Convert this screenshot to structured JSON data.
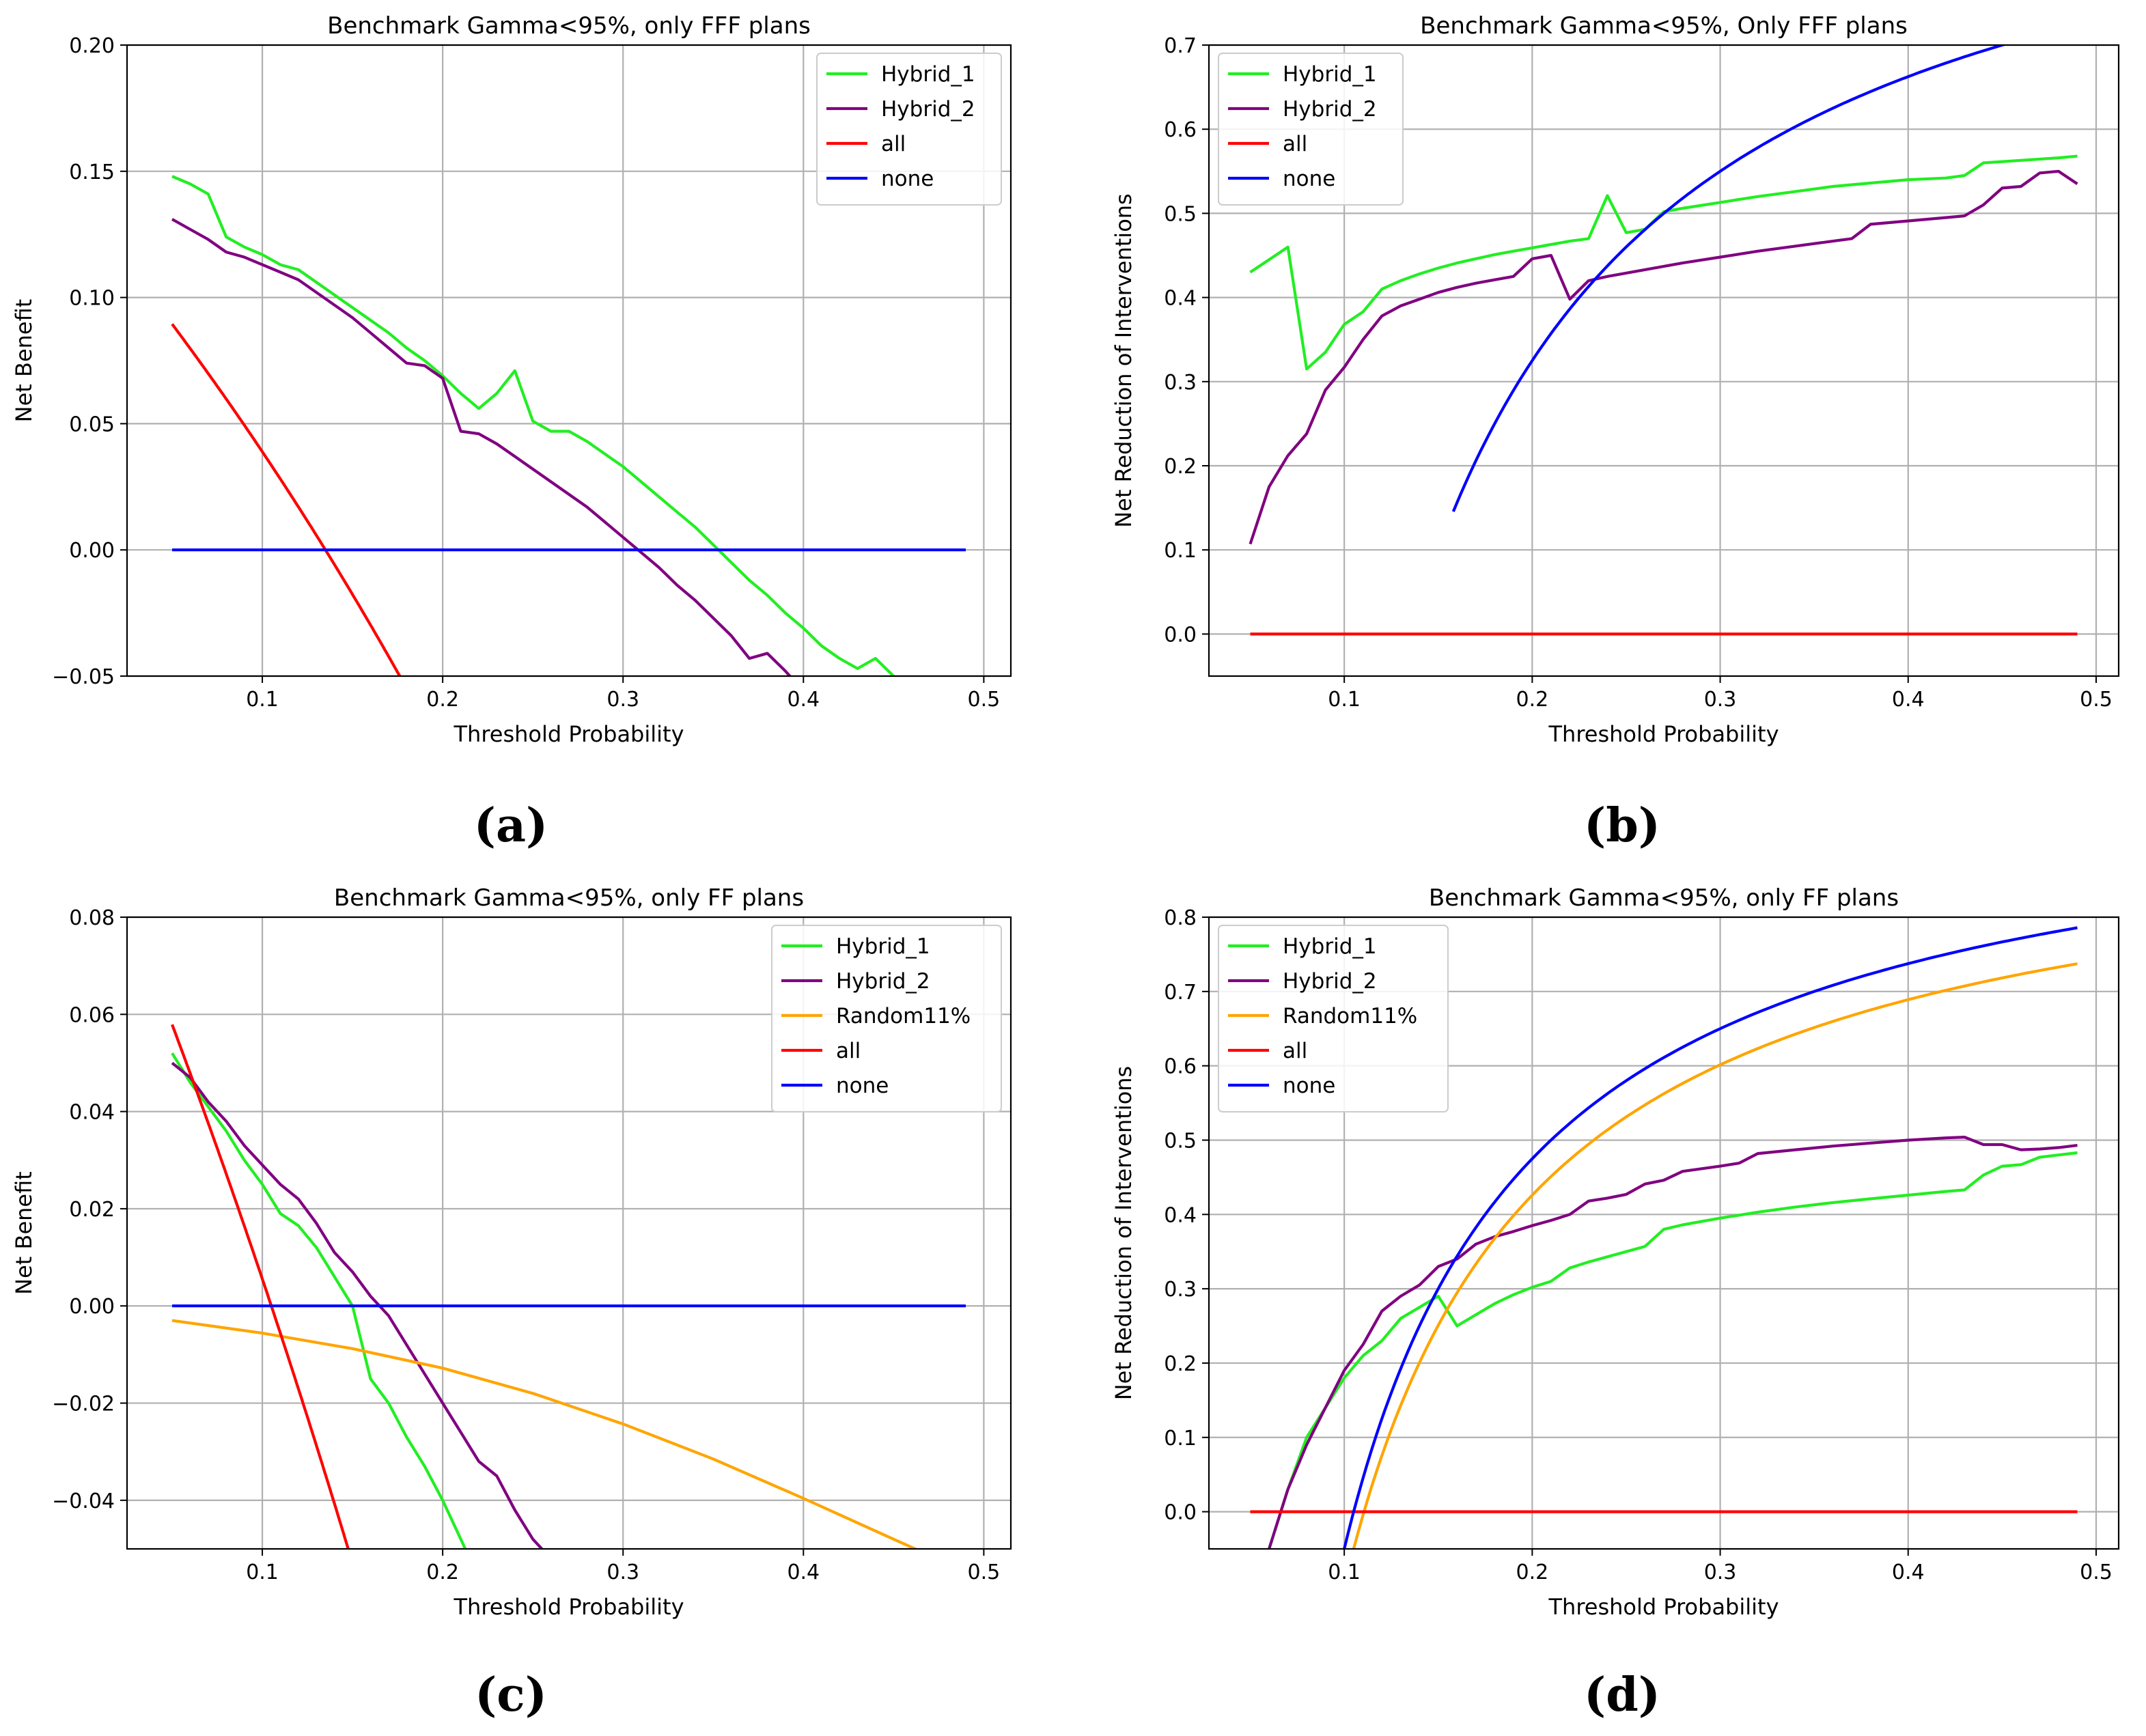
{
  "chart_data": [
    {
      "id": "a",
      "type": "line",
      "panel_label": "(a)",
      "title": "Benchmark Gamma<95%, only FFF plans",
      "xlabel": "Threshold Probability",
      "ylabel": "Net Benefit",
      "xlim": [
        0.025,
        0.515
      ],
      "ylim": [
        -0.05,
        0.2
      ],
      "xticks": [
        0.1,
        0.2,
        0.3,
        0.4,
        0.5
      ],
      "xtick_labels": [
        "0.1",
        "0.2",
        "0.3",
        "0.4",
        "0.5"
      ],
      "yticks": [
        -0.05,
        0.0,
        0.05,
        0.1,
        0.15,
        0.2
      ],
      "ytick_labels": [
        "−0.05",
        "0.00",
        "0.05",
        "0.10",
        "0.15",
        "0.20"
      ],
      "grid": true,
      "legend_position": "top-right",
      "series": [
        {
          "name": "Hybrid_1",
          "color": "#22ee22",
          "x": [
            0.05,
            0.06,
            0.07,
            0.08,
            0.09,
            0.1,
            0.11,
            0.12,
            0.13,
            0.14,
            0.15,
            0.16,
            0.17,
            0.18,
            0.19,
            0.2,
            0.21,
            0.22,
            0.23,
            0.24,
            0.25,
            0.26,
            0.27,
            0.28,
            0.29,
            0.3,
            0.31,
            0.32,
            0.33,
            0.34,
            0.35,
            0.36,
            0.37,
            0.38,
            0.39,
            0.4,
            0.41,
            0.42,
            0.43,
            0.44,
            0.45,
            0.46
          ],
          "y": [
            0.148,
            0.145,
            0.141,
            0.124,
            0.12,
            0.117,
            0.113,
            0.111,
            0.106,
            0.101,
            0.096,
            0.091,
            0.086,
            0.08,
            0.075,
            0.069,
            0.062,
            0.056,
            0.062,
            0.071,
            0.051,
            0.047,
            0.047,
            0.043,
            0.038,
            0.033,
            0.027,
            0.021,
            0.015,
            0.009,
            0.002,
            -0.005,
            -0.012,
            -0.018,
            -0.025,
            -0.031,
            -0.038,
            -0.043,
            -0.047,
            -0.043,
            -0.05,
            -0.057
          ]
        },
        {
          "name": "Hybrid_2",
          "color": "#800080",
          "x": [
            0.05,
            0.06,
            0.07,
            0.08,
            0.09,
            0.1,
            0.11,
            0.12,
            0.13,
            0.14,
            0.15,
            0.16,
            0.17,
            0.18,
            0.19,
            0.2,
            0.21,
            0.22,
            0.23,
            0.24,
            0.25,
            0.26,
            0.27,
            0.28,
            0.29,
            0.3,
            0.31,
            0.32,
            0.33,
            0.34,
            0.35,
            0.36,
            0.37,
            0.38,
            0.39,
            0.4
          ],
          "y": [
            0.131,
            0.127,
            0.123,
            0.118,
            0.116,
            0.113,
            0.11,
            0.107,
            0.102,
            0.097,
            0.092,
            0.086,
            0.08,
            0.074,
            0.073,
            0.068,
            0.047,
            0.046,
            0.042,
            0.037,
            0.032,
            0.027,
            0.022,
            0.017,
            0.011,
            0.005,
            -0.001,
            -0.007,
            -0.014,
            -0.02,
            -0.027,
            -0.034,
            -0.043,
            -0.041,
            -0.048,
            -0.056
          ]
        },
        {
          "name": "all",
          "color": "#ff0000",
          "fn": "1 - (1-0.135)/(1-x)",
          "xrange": [
            0.05,
            0.21
          ]
        },
        {
          "name": "none",
          "color": "#0000ff",
          "x": [
            0.05,
            0.49
          ],
          "y": [
            0.0,
            0.0
          ]
        }
      ]
    },
    {
      "id": "b",
      "type": "line",
      "panel_label": "(b)",
      "title": "Benchmark Gamma<95%, Only FFF plans",
      "xlabel": "Threshold Probability",
      "ylabel": "Net Reduction of Interventions",
      "xlim": [
        0.028,
        0.512
      ],
      "ylim": [
        -0.05,
        0.7
      ],
      "xticks": [
        0.1,
        0.2,
        0.3,
        0.4,
        0.5
      ],
      "xtick_labels": [
        "0.1",
        "0.2",
        "0.3",
        "0.4",
        "0.5"
      ],
      "yticks": [
        0.0,
        0.1,
        0.2,
        0.3,
        0.4,
        0.5,
        0.6,
        0.7
      ],
      "ytick_labels": [
        "0.0",
        "0.1",
        "0.2",
        "0.3",
        "0.4",
        "0.5",
        "0.6",
        "0.7"
      ],
      "grid": true,
      "legend_position": "top-left",
      "series": [
        {
          "name": "Hybrid_1",
          "color": "#22ee22",
          "x": [
            0.05,
            0.06,
            0.07,
            0.08,
            0.09,
            0.1,
            0.11,
            0.12,
            0.13,
            0.14,
            0.15,
            0.16,
            0.17,
            0.18,
            0.19,
            0.2,
            0.21,
            0.22,
            0.23,
            0.24,
            0.25,
            0.26,
            0.27,
            0.28,
            0.3,
            0.32,
            0.34,
            0.36,
            0.38,
            0.4,
            0.42,
            0.43,
            0.44,
            0.46,
            0.48,
            0.49
          ],
          "y": [
            0.43,
            0.445,
            0.46,
            0.315,
            0.335,
            0.368,
            0.383,
            0.41,
            0.42,
            0.428,
            0.435,
            0.441,
            0.446,
            0.451,
            0.455,
            0.459,
            0.463,
            0.467,
            0.47,
            0.521,
            0.477,
            0.481,
            0.502,
            0.506,
            0.513,
            0.52,
            0.526,
            0.532,
            0.536,
            0.54,
            0.542,
            0.545,
            0.56,
            0.563,
            0.566,
            0.568
          ]
        },
        {
          "name": "Hybrid_2",
          "color": "#800080",
          "x": [
            0.05,
            0.06,
            0.07,
            0.08,
            0.09,
            0.1,
            0.11,
            0.12,
            0.13,
            0.14,
            0.15,
            0.16,
            0.17,
            0.18,
            0.19,
            0.2,
            0.21,
            0.22,
            0.23,
            0.24,
            0.26,
            0.28,
            0.3,
            0.32,
            0.34,
            0.36,
            0.37,
            0.38,
            0.4,
            0.42,
            0.43,
            0.44,
            0.45,
            0.46,
            0.47,
            0.48,
            0.49
          ],
          "y": [
            0.107,
            0.175,
            0.212,
            0.238,
            0.29,
            0.317,
            0.35,
            0.378,
            0.39,
            0.398,
            0.406,
            0.412,
            0.417,
            0.421,
            0.425,
            0.446,
            0.45,
            0.398,
            0.42,
            0.425,
            0.433,
            0.441,
            0.448,
            0.455,
            0.461,
            0.467,
            0.47,
            0.487,
            0.491,
            0.495,
            0.497,
            0.51,
            0.53,
            0.532,
            0.548,
            0.55,
            0.535
          ]
        },
        {
          "name": "all",
          "color": "#ff0000",
          "x": [
            0.05,
            0.49
          ],
          "y": [
            0.0,
            0.0
          ]
        },
        {
          "name": "none",
          "color": "#0000ff",
          "fn": "1 - 0.135/x",
          "xrange": [
            0.158,
            0.49
          ]
        }
      ]
    },
    {
      "id": "c",
      "type": "line",
      "panel_label": "(c)",
      "title": "Benchmark Gamma<95%, only FF plans",
      "xlabel": "Threshold Probability",
      "ylabel": "Net Benefit",
      "xlim": [
        0.025,
        0.515
      ],
      "ylim": [
        -0.05,
        0.08
      ],
      "xticks": [
        0.1,
        0.2,
        0.3,
        0.4,
        0.5
      ],
      "xtick_labels": [
        "0.1",
        "0.2",
        "0.3",
        "0.4",
        "0.5"
      ],
      "yticks": [
        -0.04,
        -0.02,
        0.0,
        0.02,
        0.04,
        0.06,
        0.08
      ],
      "ytick_labels": [
        "−0.04",
        "−0.02",
        "0.00",
        "0.02",
        "0.04",
        "0.06",
        "0.08"
      ],
      "grid": true,
      "legend_position": "top-right",
      "series": [
        {
          "name": "Hybrid_1",
          "color": "#22ee22",
          "x": [
            0.05,
            0.06,
            0.07,
            0.08,
            0.09,
            0.1,
            0.11,
            0.12,
            0.13,
            0.14,
            0.15,
            0.16,
            0.17,
            0.18,
            0.19,
            0.2,
            0.21,
            0.215
          ],
          "y": [
            0.052,
            0.046,
            0.041,
            0.036,
            0.03,
            0.025,
            0.019,
            0.0165,
            0.012,
            0.006,
            0.0,
            -0.015,
            -0.02,
            -0.027,
            -0.033,
            -0.04,
            -0.048,
            -0.052
          ]
        },
        {
          "name": "Hybrid_2",
          "color": "#800080",
          "x": [
            0.05,
            0.06,
            0.07,
            0.08,
            0.09,
            0.1,
            0.11,
            0.12,
            0.13,
            0.14,
            0.15,
            0.16,
            0.17,
            0.18,
            0.19,
            0.2,
            0.21,
            0.22,
            0.23,
            0.24,
            0.25,
            0.255
          ],
          "y": [
            0.05,
            0.047,
            0.042,
            0.038,
            0.033,
            0.029,
            0.025,
            0.022,
            0.017,
            0.011,
            0.007,
            0.002,
            -0.002,
            -0.008,
            -0.014,
            -0.02,
            -0.026,
            -0.032,
            -0.035,
            -0.042,
            -0.048,
            -0.05
          ]
        },
        {
          "name": "Random11%",
          "color": "#ffa500",
          "fn": "0.11 - 0.89*x/(1-x) * 1.0*0 + 0",
          "points": "computed",
          "x": [
            0.05,
            0.1,
            0.15,
            0.2,
            0.25,
            0.3,
            0.35,
            0.4,
            0.45,
            0.465
          ],
          "y": [
            -0.003,
            -0.0056,
            -0.0088,
            -0.0128,
            -0.018,
            -0.0243,
            -0.0315,
            -0.0396,
            -0.048,
            -0.0505
          ]
        },
        {
          "name": "all",
          "color": "#ff0000",
          "fn": "1 - (1-0.105)/(1-x)",
          "xrange": [
            0.05,
            0.152
          ]
        },
        {
          "name": "none",
          "color": "#0000ff",
          "x": [
            0.05,
            0.49
          ],
          "y": [
            0.0,
            0.0
          ]
        }
      ]
    },
    {
      "id": "d",
      "type": "line",
      "panel_label": "(d)",
      "title": "Benchmark Gamma<95%, only FF plans",
      "xlabel": "Threshold Probability",
      "ylabel": "Net Reduction of Interventions",
      "xlim": [
        0.028,
        0.512
      ],
      "ylim": [
        -0.05,
        0.8
      ],
      "xticks": [
        0.1,
        0.2,
        0.3,
        0.4,
        0.5
      ],
      "xtick_labels": [
        "0.1",
        "0.2",
        "0.3",
        "0.4",
        "0.5"
      ],
      "yticks": [
        0.0,
        0.1,
        0.2,
        0.3,
        0.4,
        0.5,
        0.6,
        0.7,
        0.8
      ],
      "ytick_labels": [
        "0.0",
        "0.1",
        "0.2",
        "0.3",
        "0.4",
        "0.5",
        "0.6",
        "0.7",
        "0.8"
      ],
      "grid": true,
      "legend_position": "top-left",
      "series": [
        {
          "name": "Hybrid_1",
          "color": "#22ee22",
          "x": [
            0.06,
            0.07,
            0.08,
            0.09,
            0.1,
            0.11,
            0.12,
            0.13,
            0.14,
            0.15,
            0.16,
            0.17,
            0.18,
            0.19,
            0.2,
            0.21,
            0.22,
            0.23,
            0.24,
            0.25,
            0.26,
            0.27,
            0.28,
            0.3,
            0.32,
            0.34,
            0.36,
            0.38,
            0.4,
            0.42,
            0.43,
            0.44,
            0.45,
            0.46,
            0.47,
            0.48,
            0.49
          ],
          "y": [
            -0.05,
            0.03,
            0.1,
            0.14,
            0.18,
            0.21,
            0.23,
            0.26,
            0.275,
            0.29,
            0.25,
            0.265,
            0.28,
            0.292,
            0.302,
            0.31,
            0.328,
            0.336,
            0.343,
            0.35,
            0.357,
            0.38,
            0.386,
            0.395,
            0.403,
            0.41,
            0.416,
            0.421,
            0.426,
            0.431,
            0.433,
            0.453,
            0.465,
            0.467,
            0.477,
            0.48,
            0.483
          ]
        },
        {
          "name": "Hybrid_2",
          "color": "#800080",
          "x": [
            0.06,
            0.07,
            0.08,
            0.09,
            0.1,
            0.11,
            0.12,
            0.13,
            0.14,
            0.15,
            0.16,
            0.17,
            0.18,
            0.19,
            0.2,
            0.21,
            0.22,
            0.23,
            0.24,
            0.25,
            0.26,
            0.27,
            0.28,
            0.3,
            0.31,
            0.32,
            0.34,
            0.36,
            0.38,
            0.4,
            0.42,
            0.43,
            0.44,
            0.45,
            0.46,
            0.47,
            0.48,
            0.49
          ],
          "y": [
            -0.05,
            0.03,
            0.09,
            0.14,
            0.19,
            0.225,
            0.27,
            0.29,
            0.305,
            0.33,
            0.34,
            0.36,
            0.37,
            0.377,
            0.385,
            0.392,
            0.4,
            0.418,
            0.422,
            0.427,
            0.441,
            0.446,
            0.458,
            0.465,
            0.469,
            0.482,
            0.487,
            0.492,
            0.496,
            0.5,
            0.503,
            0.504,
            0.494,
            0.494,
            0.487,
            0.488,
            0.49,
            0.493
          ]
        },
        {
          "name": "Random11%",
          "color": "#ffa500",
          "fn": "1 - 0.105/x",
          "xrange": [
            0.1,
            0.49
          ],
          "scale": 0.952
        },
        {
          "name": "all",
          "color": "#ff0000",
          "x": [
            0.05,
            0.49
          ],
          "y": [
            0.0,
            0.0
          ]
        },
        {
          "name": "none",
          "color": "#0000ff",
          "fn": "1 - 0.105/x",
          "xrange": [
            0.0997,
            0.49
          ],
          "scale": 1.0
        }
      ]
    }
  ]
}
